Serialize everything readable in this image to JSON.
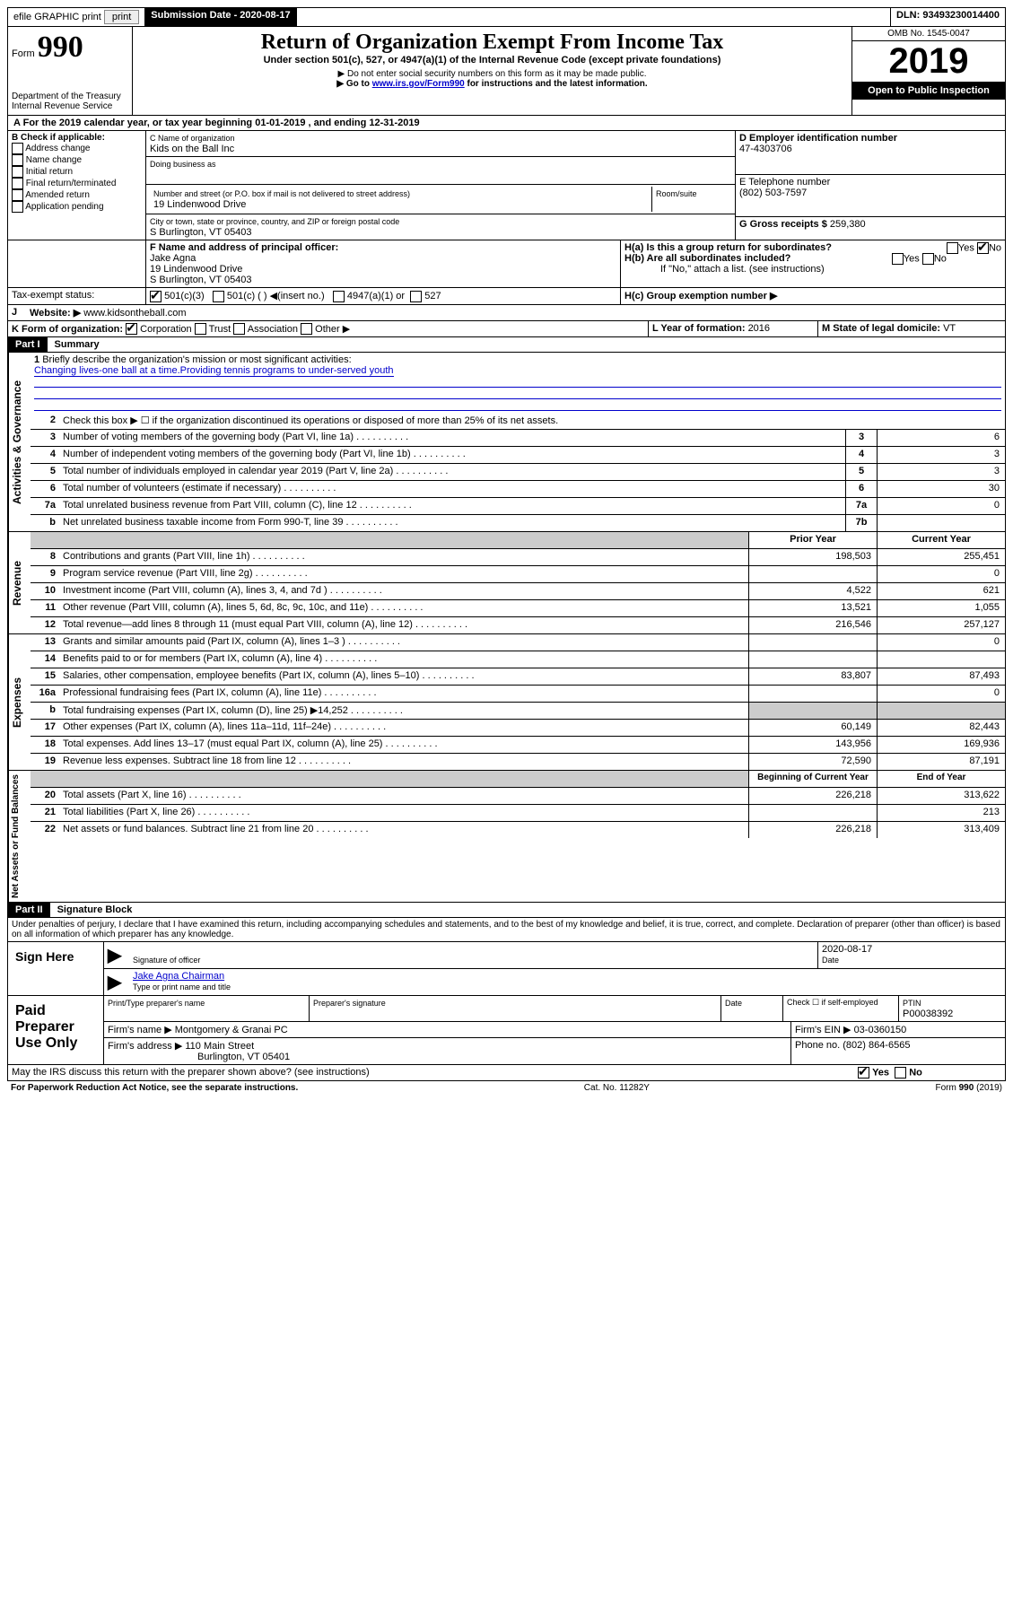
{
  "topbar": {
    "efile": "efile GRAPHIC print",
    "submission_label": "Submission Date - 2020-08-17",
    "dln": "DLN: 93493230014400"
  },
  "header": {
    "form_label": "Form",
    "form_number": "990",
    "dept": "Department of the Treasury\nInternal Revenue Service",
    "title": "Return of Organization Exempt From Income Tax",
    "subtitle": "Under section 501(c), 527, or 4947(a)(1) of the Internal Revenue Code (except private foundations)",
    "note1": "▶ Do not enter social security numbers on this form as it may be made public.",
    "note2_pre": "▶ Go to ",
    "note2_link": "www.irs.gov/Form990",
    "note2_post": " for instructions and the latest information.",
    "omb": "OMB No. 1545-0047",
    "year": "2019",
    "open": "Open to Public Inspection"
  },
  "period": {
    "text_pre": "For the 2019 calendar year, or tax year beginning ",
    "begin": "01-01-2019",
    "mid": " , and ending ",
    "end": "12-31-2019"
  },
  "boxB": {
    "label": "B Check if applicable:",
    "opts": [
      "Address change",
      "Name change",
      "Initial return",
      "Final return/terminated",
      "Amended return",
      "Application pending"
    ]
  },
  "boxC": {
    "name_label": "C Name of organization",
    "name": "Kids on the Ball Inc",
    "dba_label": "Doing business as",
    "addr_label": "Number and street (or P.O. box if mail is not delivered to street address)",
    "room_label": "Room/suite",
    "addr": "19 Lindenwood Drive",
    "city_label": "City or town, state or province, country, and ZIP or foreign postal code",
    "city": "S Burlington, VT  05403"
  },
  "boxD": {
    "label": "D Employer identification number",
    "value": "47-4303706"
  },
  "boxE": {
    "label": "E Telephone number",
    "value": "(802) 503-7597"
  },
  "boxG": {
    "label": "G Gross receipts $ ",
    "value": "259,380"
  },
  "boxF": {
    "label": "F Name and address of principal officer:",
    "name": "Jake Agna",
    "addr1": "19 Lindenwood Drive",
    "addr2": "S Burlington, VT  05403"
  },
  "boxH": {
    "a": "H(a)  Is this a group return for subordinates?",
    "b": "H(b)  Are all subordinates included?",
    "b_note": "If \"No,\" attach a list. (see instructions)",
    "c": "H(c)  Group exemption number ▶"
  },
  "taxExempt": {
    "label": "Tax-exempt status:",
    "c3": "501(c)(3)",
    "c": "501(c) (  ) ◀(insert no.)",
    "a1": "4947(a)(1) or",
    "s527": "527"
  },
  "boxJ": {
    "label": "Website: ▶",
    "value": "www.kidsontheball.com"
  },
  "boxK": {
    "label": "K Form of organization:",
    "corp": "Corporation",
    "trust": "Trust",
    "assoc": "Association",
    "other": "Other ▶"
  },
  "boxL": {
    "label": "L Year of formation: ",
    "value": "2016"
  },
  "boxM": {
    "label": "M State of legal domicile: ",
    "value": "VT"
  },
  "part1": {
    "label": "Part I",
    "title": "Summary",
    "l1_label": "Briefly describe the organization's mission or most significant activities:",
    "l1_text": "Changing lives-one ball at a time.Providing tennis programs to under-served youth",
    "l2": "Check this box ▶ ☐  if the organization discontinued its operations or disposed of more than 25% of its net assets.",
    "lines_gov": [
      {
        "n": "3",
        "t": "Number of voting members of the governing body (Part VI, line 1a)",
        "b": "3",
        "v": "6"
      },
      {
        "n": "4",
        "t": "Number of independent voting members of the governing body (Part VI, line 1b)",
        "b": "4",
        "v": "3"
      },
      {
        "n": "5",
        "t": "Total number of individuals employed in calendar year 2019 (Part V, line 2a)",
        "b": "5",
        "v": "3"
      },
      {
        "n": "6",
        "t": "Total number of volunteers (estimate if necessary)",
        "b": "6",
        "v": "30"
      },
      {
        "n": "7a",
        "t": "Total unrelated business revenue from Part VIII, column (C), line 12",
        "b": "7a",
        "v": "0"
      },
      {
        "n": "b",
        "t": "Net unrelated business taxable income from Form 990-T, line 39",
        "b": "7b",
        "v": ""
      }
    ],
    "col_prior": "Prior Year",
    "col_current": "Current Year",
    "lines_rev": [
      {
        "n": "8",
        "t": "Contributions and grants (Part VIII, line 1h)",
        "p": "198,503",
        "c": "255,451"
      },
      {
        "n": "9",
        "t": "Program service revenue (Part VIII, line 2g)",
        "p": "",
        "c": "0"
      },
      {
        "n": "10",
        "t": "Investment income (Part VIII, column (A), lines 3, 4, and 7d )",
        "p": "4,522",
        "c": "621"
      },
      {
        "n": "11",
        "t": "Other revenue (Part VIII, column (A), lines 5, 6d, 8c, 9c, 10c, and 11e)",
        "p": "13,521",
        "c": "1,055"
      },
      {
        "n": "12",
        "t": "Total revenue—add lines 8 through 11 (must equal Part VIII, column (A), line 12)",
        "p": "216,546",
        "c": "257,127"
      }
    ],
    "lines_exp": [
      {
        "n": "13",
        "t": "Grants and similar amounts paid (Part IX, column (A), lines 1–3 )",
        "p": "",
        "c": "0"
      },
      {
        "n": "14",
        "t": "Benefits paid to or for members (Part IX, column (A), line 4)",
        "p": "",
        "c": ""
      },
      {
        "n": "15",
        "t": "Salaries, other compensation, employee benefits (Part IX, column (A), lines 5–10)",
        "p": "83,807",
        "c": "87,493"
      },
      {
        "n": "16a",
        "t": "Professional fundraising fees (Part IX, column (A), line 11e)",
        "p": "",
        "c": "0"
      },
      {
        "n": "b",
        "t": "Total fundraising expenses (Part IX, column (D), line 25) ▶14,252",
        "p": "SHADE",
        "c": "SHADE"
      },
      {
        "n": "17",
        "t": "Other expenses (Part IX, column (A), lines 11a–11d, 11f–24e)",
        "p": "60,149",
        "c": "82,443"
      },
      {
        "n": "18",
        "t": "Total expenses. Add lines 13–17 (must equal Part IX, column (A), line 25)",
        "p": "143,956",
        "c": "169,936"
      },
      {
        "n": "19",
        "t": "Revenue less expenses. Subtract line 18 from line 12",
        "p": "72,590",
        "c": "87,191"
      }
    ],
    "col_begin": "Beginning of Current Year",
    "col_end": "End of Year",
    "lines_net": [
      {
        "n": "20",
        "t": "Total assets (Part X, line 16)",
        "p": "226,218",
        "c": "313,622"
      },
      {
        "n": "21",
        "t": "Total liabilities (Part X, line 26)",
        "p": "",
        "c": "213"
      },
      {
        "n": "22",
        "t": "Net assets or fund balances. Subtract line 21 from line 20",
        "p": "226,218",
        "c": "313,409"
      }
    ],
    "vlabels": {
      "gov": "Activities & Governance",
      "rev": "Revenue",
      "exp": "Expenses",
      "net": "Net Assets or Fund Balances"
    }
  },
  "part2": {
    "label": "Part II",
    "title": "Signature Block",
    "perjury": "Under penalties of perjury, I declare that I have examined this return, including accompanying schedules and statements, and to the best of my knowledge and belief, it is true, correct, and complete. Declaration of preparer (other than officer) is based on all information of which preparer has any knowledge.",
    "sign_here": "Sign Here",
    "sig_officer": "Signature of officer",
    "sig_date": "2020-08-17",
    "date_label": "Date",
    "officer_name": "Jake Agna  Chairman",
    "type_label": "Type or print name and title",
    "paid": "Paid Preparer Use Only",
    "prep_name_label": "Print/Type preparer's name",
    "prep_sig_label": "Preparer's signature",
    "check_self": "Check ☐ if self-employed",
    "ptin_label": "PTIN",
    "ptin": "P00038392",
    "firm_name_label": "Firm's name    ▶",
    "firm_name": "Montgomery & Granai PC",
    "firm_ein_label": "Firm's EIN ▶",
    "firm_ein": "03-0360150",
    "firm_addr_label": "Firm's address ▶",
    "firm_addr1": "110 Main Street",
    "firm_addr2": "Burlington, VT  05401",
    "phone_label": "Phone no. ",
    "phone": "(802) 864-6565",
    "discuss": "May the IRS discuss this return with the preparer shown above? (see instructions)",
    "yes": "Yes",
    "no": "No"
  },
  "footer": {
    "pra": "For Paperwork Reduction Act Notice, see the separate instructions.",
    "cat": "Cat. No. 11282Y",
    "form": "Form 990 (2019)"
  }
}
